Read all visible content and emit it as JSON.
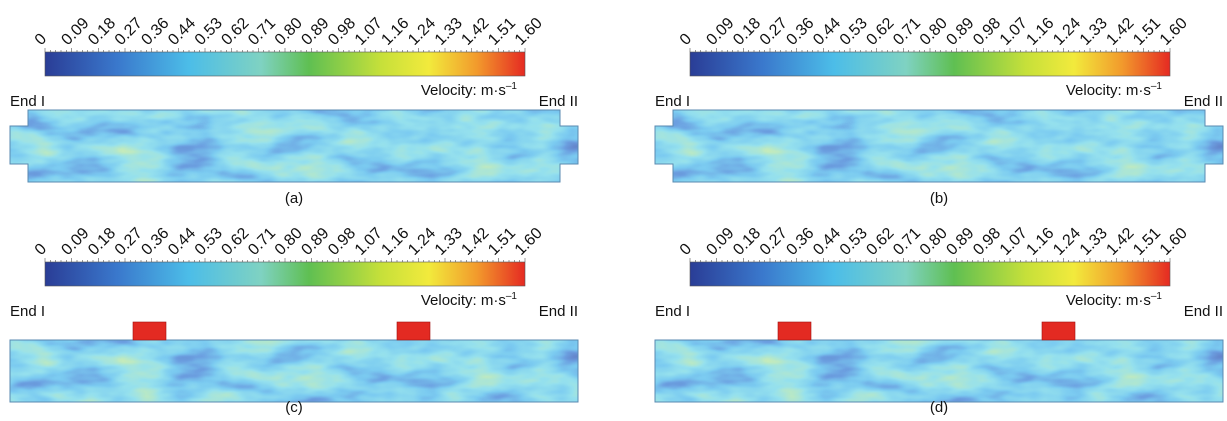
{
  "panels": [
    {
      "caption": "(a)",
      "end_left": "End I",
      "end_right": "End II",
      "colorbar": {
        "label": "Velocity: m·s",
        "label_sup": "–1",
        "ticks": [
          "0",
          "0.09",
          "0.18",
          "0.27",
          "0.36",
          "0.44",
          "0.53",
          "0.62",
          "0.71",
          "0.80",
          "0.89",
          "0.98",
          "1.07",
          "1.16",
          "1.24",
          "1.33",
          "1.42",
          "1.51",
          "1.60"
        ]
      }
    },
    {
      "caption": "(b)",
      "end_left": "End I",
      "end_right": "End II",
      "colorbar": {
        "label": "Velocity: m·s",
        "label_sup": "–1",
        "ticks": [
          "0",
          "0.09",
          "0.18",
          "0.27",
          "0.36",
          "0.44",
          "0.53",
          "0.62",
          "0.71",
          "0.80",
          "0.89",
          "0.98",
          "1.07",
          "1.16",
          "1.24",
          "1.33",
          "1.42",
          "1.51",
          "1.60"
        ]
      }
    },
    {
      "caption": "(c)",
      "end_left": "End I",
      "end_right": "End II",
      "colorbar": {
        "label": "Velocity: m·s",
        "label_sup": "–1",
        "ticks": [
          "0",
          "0.09",
          "0.18",
          "0.27",
          "0.36",
          "0.44",
          "0.53",
          "0.62",
          "0.71",
          "0.80",
          "0.89",
          "0.98",
          "1.07",
          "1.16",
          "1.24",
          "1.33",
          "1.42",
          "1.51",
          "1.60"
        ]
      }
    },
    {
      "caption": "(d)",
      "end_left": "End I",
      "end_right": "End II",
      "colorbar": {
        "label": "Velocity: m·s",
        "label_sup": "–1",
        "ticks": [
          "0",
          "0.09",
          "0.18",
          "0.27",
          "0.36",
          "0.44",
          "0.53",
          "0.62",
          "0.71",
          "0.80",
          "0.89",
          "0.98",
          "1.07",
          "1.16",
          "1.24",
          "1.33",
          "1.42",
          "1.51",
          "1.60"
        ]
      }
    }
  ]
}
